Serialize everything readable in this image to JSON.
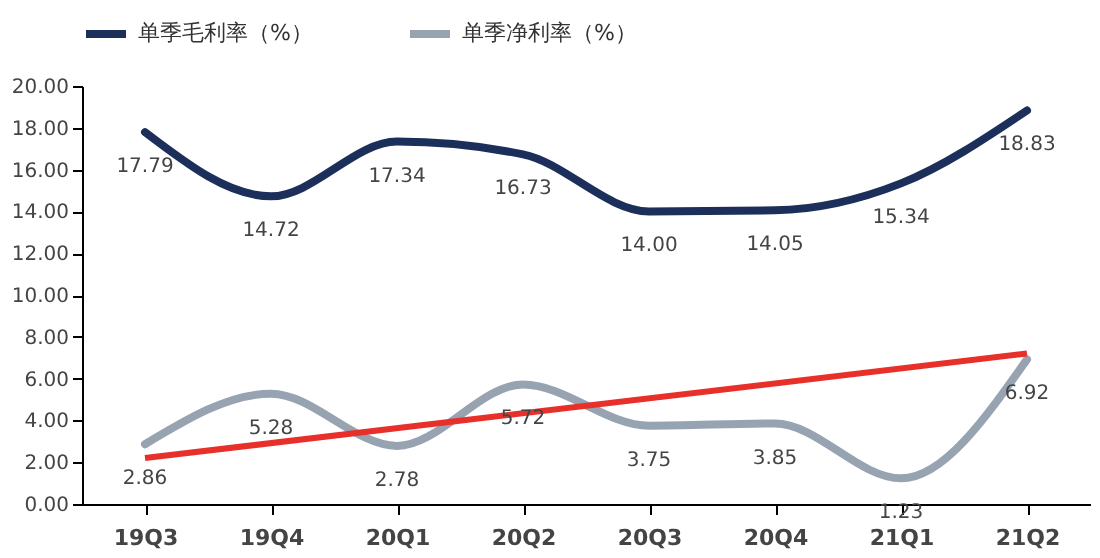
{
  "chart_data": {
    "type": "line",
    "categories": [
      "19Q3",
      "19Q4",
      "20Q1",
      "20Q2",
      "20Q3",
      "20Q4",
      "21Q1",
      "21Q2"
    ],
    "series": [
      {
        "name": "单季毛利率（%）",
        "color": "#1b2f5a",
        "values": [
          17.79,
          14.72,
          17.34,
          16.73,
          14.0,
          14.05,
          15.34,
          18.83
        ],
        "value_labels": [
          "17.79",
          "14.72",
          "17.34",
          "16.73",
          "14.00",
          "14.05",
          "15.34",
          "18.83"
        ]
      },
      {
        "name": "单季净利率（%）",
        "color": "#97a3b1",
        "values": [
          2.86,
          5.28,
          2.78,
          5.72,
          3.75,
          3.85,
          1.23,
          6.92
        ],
        "value_labels": [
          "2.86",
          "5.28",
          "2.78",
          "5.72",
          "3.75",
          "3.85",
          "1.23",
          "6.92"
        ]
      },
      {
        "type": "line",
        "color": "#e8302a",
        "x": [
          "19Q3",
          "21Q2"
        ],
        "values": [
          2.2,
          7.2
        ]
      }
    ],
    "ylim": [
      0,
      20
    ],
    "yticks": [
      {
        "value": 0,
        "label": "0.00"
      },
      {
        "value": 2,
        "label": "2.00"
      },
      {
        "value": 4,
        "label": "4.00"
      },
      {
        "value": 6,
        "label": "6.00"
      },
      {
        "value": 8,
        "label": "8.00"
      },
      {
        "value": 10,
        "label": "10.00"
      },
      {
        "value": 12,
        "label": "12.00"
      },
      {
        "value": 14,
        "label": "14.00"
      },
      {
        "value": 16,
        "label": "16.00"
      },
      {
        "value": 18,
        "label": "18.00"
      },
      {
        "value": 20,
        "label": "20.00"
      }
    ],
    "legend": "top",
    "grid": false,
    "marker": "none",
    "line_style": "solid"
  }
}
